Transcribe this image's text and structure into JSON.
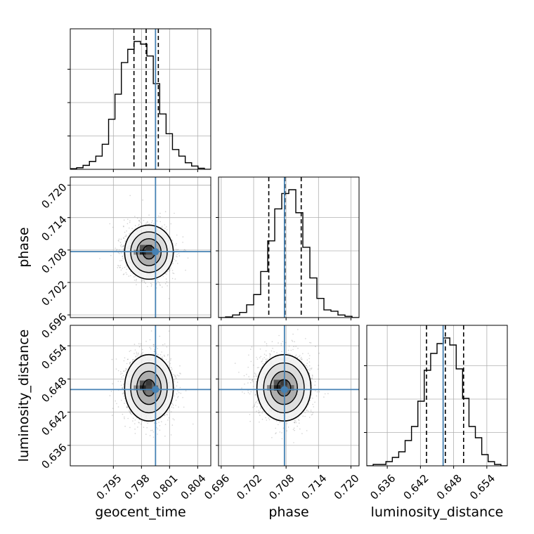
{
  "chart_data": {
    "type": "corner",
    "parameters": [
      "geocent_time",
      "phase",
      "luminosity_distance"
    ],
    "axis_labels": {
      "x": [
        "geocent_time",
        "phase",
        "luminosity_distance"
      ],
      "y": [
        "phase",
        "luminosity_distance"
      ]
    },
    "ranges": {
      "geocent_time": [
        0.7904,
        0.8054
      ],
      "phase": [
        0.6955,
        0.7215
      ],
      "luminosity_distance": [
        0.6323,
        0.6577
      ]
    },
    "ticks": {
      "geocent_time": [
        "0.795",
        "0.798",
        "0.801",
        "0.804"
      ],
      "phase": [
        "0.696",
        "0.702",
        "0.708",
        "0.714",
        "0.720"
      ],
      "luminosity_distance": [
        "0.636",
        "0.642",
        "0.648",
        "0.654"
      ]
    },
    "truths": {
      "geocent_time": 0.7995,
      "phase": 0.7077,
      "luminosity_distance": 0.6461
    },
    "quantiles": {
      "geocent_time": [
        0.7972,
        0.7985,
        0.7998
      ],
      "phase": [
        0.7048,
        0.7078,
        0.7108
      ],
      "luminosity_distance": [
        0.6431,
        0.6465,
        0.6498
      ]
    },
    "histograms": {
      "geocent_time": [
        0.005,
        0.012,
        0.03,
        0.06,
        0.1,
        0.19,
        0.38,
        0.57,
        0.81,
        0.91,
        0.97,
        0.95,
        0.86,
        0.65,
        0.42,
        0.27,
        0.15,
        0.1,
        0.05,
        0.025,
        0.008,
        0.0
      ],
      "phase": [
        0.0,
        0.005,
        0.02,
        0.04,
        0.1,
        0.18,
        0.36,
        0.6,
        0.85,
        0.97,
        1.0,
        0.82,
        0.55,
        0.31,
        0.15,
        0.06,
        0.05,
        0.02,
        0.01,
        0.0
      ],
      "luminosity_distance": [
        0.0,
        0.01,
        0.01,
        0.03,
        0.06,
        0.1,
        0.18,
        0.28,
        0.46,
        0.68,
        0.8,
        0.87,
        0.91,
        0.86,
        0.69,
        0.48,
        0.28,
        0.2,
        0.08,
        0.03,
        0.01,
        0.0
      ]
    },
    "posterior_mean": {
      "geocent_time": 0.7988,
      "phase": 0.7076,
      "luminosity_distance": 0.6464
    },
    "posterior_std": {
      "geocent_time": 0.0013,
      "phase": 0.0025,
      "luminosity_distance": 0.003
    },
    "density_levels_sigma": [
      0.5,
      1.0,
      1.5,
      2.0
    ],
    "grid": true,
    "colors": {
      "truth": "#4682b4",
      "hist": "#000000",
      "density": "#000000",
      "points": "#808080"
    }
  }
}
